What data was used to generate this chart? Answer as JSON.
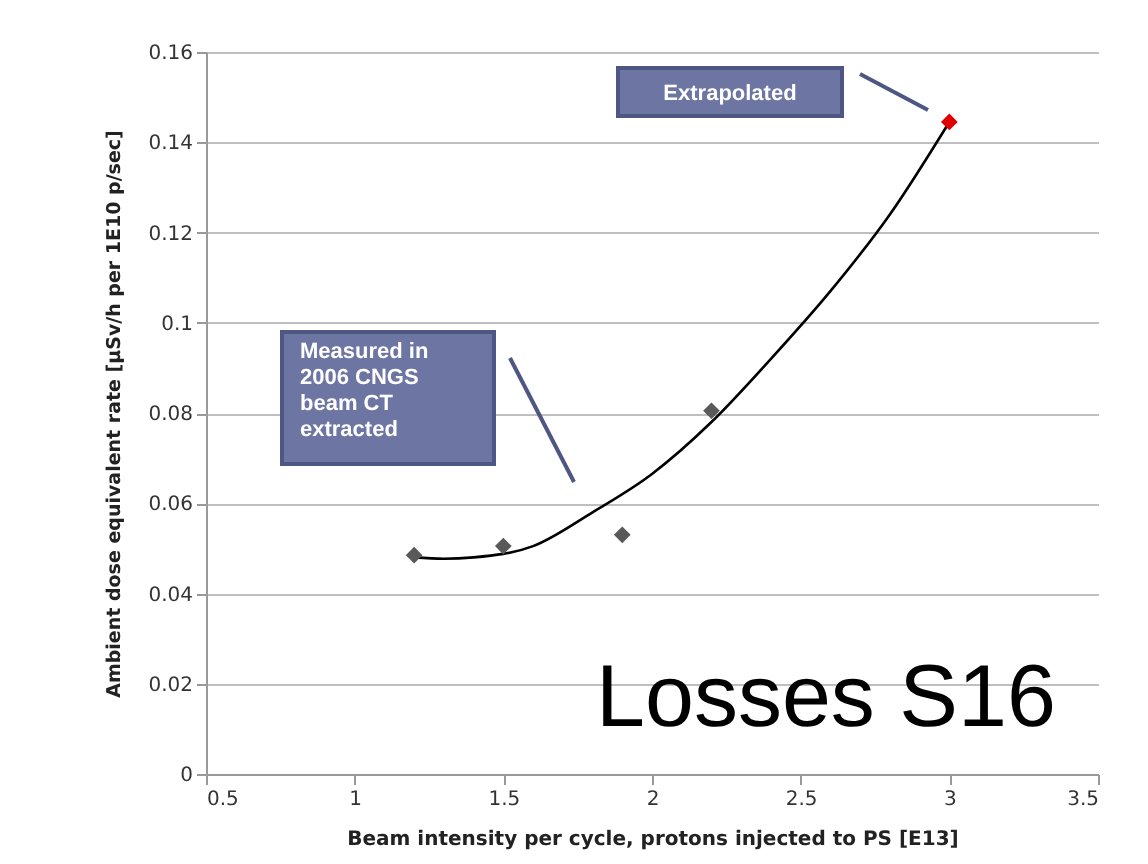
{
  "chart_data": {
    "type": "scatter",
    "xlabel": "Beam intensity per cycle, protons injected to PS [E13]",
    "ylabel": "Ambient dose equivalent rate [µSv/h per 1E10 p/sec]",
    "annotations": [
      "Extrapolated",
      "Measured in 2006 CNGS beam CT extracted",
      "Losses S16"
    ],
    "series": [
      {
        "type": "line",
        "color": "#000000",
        "marker": "none",
        "x": [
          1.2,
          1.3,
          1.4,
          1.6,
          1.8,
          2.0,
          2.2,
          2.4,
          2.6,
          2.8,
          3.0
        ],
        "values": [
          0.048,
          0.0477,
          0.048,
          0.0505,
          0.058,
          0.0665,
          0.078,
          0.092,
          0.107,
          0.124,
          0.1445
        ]
      },
      {
        "color": "#595959",
        "marker": "diamond",
        "x": [
          1.2,
          1.5,
          1.9,
          2.2
        ],
        "values": [
          0.0485,
          0.0505,
          0.053,
          0.0805
        ]
      },
      {
        "color": "#e00000",
        "marker": "diamond",
        "x": [
          3.0
        ],
        "values": [
          0.1445
        ]
      }
    ],
    "xlim": [
      0.5,
      3.5
    ],
    "xticks": [
      0.5,
      1,
      1.5,
      2,
      2.5,
      3,
      3.5
    ],
    "ylim": [
      0,
      0.16
    ],
    "yticks": [
      0,
      0.02,
      0.04,
      0.06,
      0.08,
      0.1,
      0.12,
      0.14,
      0.16
    ],
    "grid": "y"
  }
}
